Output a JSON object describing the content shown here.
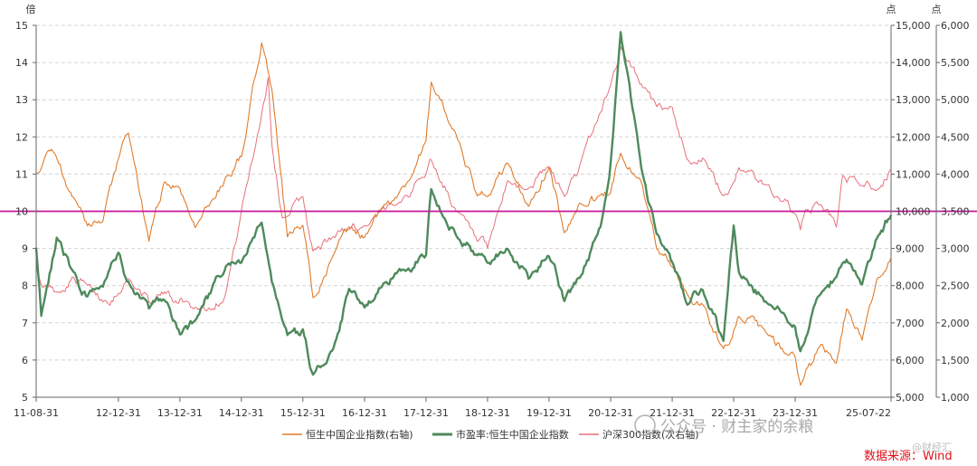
{
  "chart_data": {
    "type": "line",
    "title": "",
    "source": "数据来源：Wind",
    "watermark": "公众号 · 财主家的余粮",
    "watermark_corner": "@财经汇",
    "axes": {
      "left": {
        "unit": "倍",
        "range": [
          5,
          15
        ],
        "ticks": [
          "5",
          "6",
          "7",
          "8",
          "9",
          "10",
          "11",
          "12",
          "13",
          "14",
          "15"
        ]
      },
      "right1": {
        "unit": "点",
        "range": [
          5000,
          15000
        ],
        "ticks": [
          "5,000",
          "6,000",
          "7,000",
          "8,000",
          "9,000",
          "10,000",
          "11,000",
          "12,000",
          "13,000",
          "14,000",
          "15,000"
        ]
      },
      "right2": {
        "unit": "点",
        "range": [
          1000,
          6000
        ],
        "ticks": [
          "1,000",
          "1,500",
          "2,000",
          "2,500",
          "3,000",
          "3,500",
          "4,000",
          "4,500",
          "5,000",
          "5,500",
          "6,000"
        ]
      }
    },
    "x_ticks": [
      "11-08-31",
      "12-12-31",
      "13-12-31",
      "14-12-31",
      "15-12-31",
      "16-12-31",
      "17-12-31",
      "18-12-31",
      "19-12-31",
      "20-12-31",
      "21-12-31",
      "22-12-31",
      "23-12-31",
      "25-07-22"
    ],
    "grid": true,
    "legend_position": "bottom",
    "reference_line": {
      "axis": "left",
      "value": 10,
      "color": "#c8169c"
    },
    "series": [
      {
        "name": "恒生中国企业指数(右轴)",
        "axis": "right1",
        "color": "#e07b2a",
        "x": [
          "11-08-31",
          "11-11-30",
          "12-03-31",
          "12-06-30",
          "12-09-30",
          "12-12-31",
          "13-02-28",
          "13-06-30",
          "13-09-30",
          "13-12-31",
          "14-03-31",
          "14-06-30",
          "14-09-30",
          "14-12-31",
          "15-04-30",
          "15-06-30",
          "15-09-30",
          "15-12-31",
          "16-02-29",
          "16-06-30",
          "16-09-30",
          "16-12-31",
          "17-03-31",
          "17-06-30",
          "17-09-30",
          "17-12-31",
          "18-01-31",
          "18-06-30",
          "18-10-31",
          "18-12-31",
          "19-04-30",
          "19-08-31",
          "19-12-31",
          "20-03-31",
          "20-06-30",
          "20-12-31",
          "21-02-28",
          "21-06-30",
          "21-09-30",
          "21-12-31",
          "22-03-31",
          "22-06-30",
          "22-10-31",
          "22-12-31",
          "23-01-31",
          "23-06-30",
          "23-10-31",
          "23-12-31",
          "24-01-31",
          "24-05-31",
          "24-08-31",
          "24-10-31",
          "25-01-31",
          "25-04-30",
          "25-07-22"
        ],
        "values": [
          11000,
          11700,
          10400,
          9600,
          9700,
          11400,
          12100,
          9200,
          10800,
          10600,
          9600,
          10200,
          10900,
          11500,
          14500,
          13300,
          9300,
          9600,
          7700,
          8800,
          9500,
          9300,
          10000,
          10400,
          10900,
          11900,
          13500,
          12000,
          10400,
          10400,
          11300,
          10100,
          11200,
          9400,
          10200,
          10500,
          11600,
          10800,
          9000,
          8500,
          7800,
          7500,
          6300,
          6800,
          7200,
          6800,
          6200,
          6100,
          5300,
          6400,
          5900,
          7400,
          6500,
          8200,
          8750
        ]
      },
      {
        "name": "市盈率:恒生中国企业指数",
        "axis": "left",
        "color": "#4e8a5c",
        "x": [
          "11-08-31",
          "11-09-30",
          "11-12-31",
          "12-03-31",
          "12-06-30",
          "12-09-30",
          "12-12-31",
          "13-02-28",
          "13-06-30",
          "13-09-30",
          "13-12-31",
          "14-03-31",
          "14-06-30",
          "14-09-30",
          "14-12-31",
          "15-04-30",
          "15-06-30",
          "15-09-30",
          "15-12-31",
          "16-02-29",
          "16-06-30",
          "16-09-30",
          "16-12-31",
          "17-06-30",
          "17-12-31",
          "18-01-31",
          "18-06-30",
          "18-10-31",
          "18-12-31",
          "19-04-30",
          "19-08-31",
          "19-12-31",
          "20-03-31",
          "20-06-30",
          "20-10-31",
          "20-12-31",
          "21-02-28",
          "21-06-30",
          "21-09-30",
          "21-12-31",
          "22-03-31",
          "22-06-30",
          "22-10-31",
          "22-12-31",
          "23-01-31",
          "23-06-30",
          "23-10-31",
          "23-12-31",
          "24-01-31",
          "24-05-31",
          "24-08-31",
          "24-10-31",
          "25-01-31",
          "25-04-30",
          "25-07-22"
        ],
        "values": [
          9.0,
          7.2,
          9.3,
          8.4,
          7.7,
          8.0,
          8.9,
          8.1,
          7.4,
          7.6,
          6.7,
          7.1,
          7.8,
          8.5,
          8.6,
          9.7,
          8.1,
          6.7,
          6.8,
          5.6,
          6.3,
          7.9,
          7.4,
          8.3,
          8.8,
          10.6,
          9.3,
          8.8,
          8.6,
          9.0,
          8.2,
          8.8,
          7.6,
          8.2,
          9.6,
          11.3,
          14.8,
          11.2,
          9.4,
          8.6,
          7.5,
          7.9,
          6.5,
          9.6,
          8.4,
          7.6,
          7.2,
          6.9,
          6.2,
          7.8,
          8.2,
          8.7,
          8.0,
          9.3,
          9.9
        ]
      },
      {
        "name": "沪深300指数(次右轴)",
        "axis": "right2",
        "color": "#e8707a",
        "x": [
          "11-08-31",
          "11-09-30",
          "11-12-31",
          "12-03-31",
          "12-06-30",
          "12-09-30",
          "12-12-31",
          "13-02-28",
          "13-06-30",
          "13-09-30",
          "13-12-31",
          "14-03-31",
          "14-06-30",
          "14-09-30",
          "14-12-31",
          "15-04-30",
          "15-06-08",
          "15-06-30",
          "15-08-31",
          "15-12-31",
          "16-02-29",
          "16-06-30",
          "16-09-30",
          "16-12-31",
          "17-06-30",
          "17-12-31",
          "18-01-31",
          "18-06-30",
          "18-10-31",
          "18-12-31",
          "19-04-30",
          "19-08-31",
          "19-12-31",
          "20-03-31",
          "20-06-30",
          "20-12-31",
          "21-02-28",
          "21-06-30",
          "21-09-30",
          "21-12-31",
          "22-03-31",
          "22-06-30",
          "22-10-31",
          "22-12-31",
          "23-01-31",
          "23-06-30",
          "23-10-31",
          "23-12-31",
          "24-01-31",
          "24-02-29",
          "24-05-31",
          "24-08-31",
          "24-10-08",
          "24-12-31",
          "25-04-30",
          "25-07-22"
        ],
        "values": [
          2800,
          2500,
          2400,
          2600,
          2500,
          2300,
          2400,
          2600,
          2300,
          2400,
          2300,
          2200,
          2200,
          2400,
          3500,
          4800,
          5300,
          4400,
          3400,
          3700,
          2950,
          3150,
          3300,
          3300,
          3600,
          4000,
          4200,
          3500,
          3100,
          3000,
          3900,
          3800,
          4100,
          3700,
          4100,
          5200,
          5700,
          5200,
          4900,
          4900,
          4200,
          4200,
          3700,
          3900,
          4100,
          3850,
          3650,
          3450,
          3250,
          3500,
          3600,
          3300,
          4000,
          3900,
          3800,
          4050
        ]
      }
    ]
  }
}
